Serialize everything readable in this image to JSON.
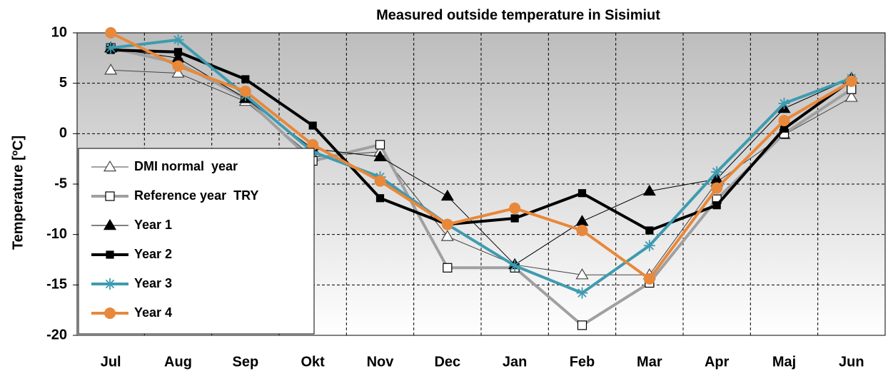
{
  "chart_data": {
    "type": "line",
    "title": "Measured outside temperature in Sisimiut",
    "y_label": "Temperature [ºC]",
    "categories": [
      "Jul",
      "Aug",
      "Sep",
      "Okt",
      "Nov",
      "Dec",
      "Jan",
      "Feb",
      "Mar",
      "Apr",
      "Maj",
      "Jun"
    ],
    "ylim": [
      -20,
      10
    ],
    "yticks": [
      -20,
      -15,
      -10,
      -5,
      0,
      5,
      10
    ],
    "grid": true,
    "legend": "lower-left",
    "series": [
      {
        "name": "DMI normal  year",
        "color": "#444444",
        "width": 1,
        "marker": "triangle-open",
        "values": [
          6.3,
          6.0,
          3.2,
          -2.3,
          -1.8,
          -10.2,
          -13.0,
          -14.0,
          -14.0,
          -4.8,
          -0.1,
          3.6
        ]
      },
      {
        "name": "Reference year  TRY",
        "color": "#a0a0a0",
        "width": 4,
        "marker": "square-open",
        "values": [
          8.5,
          7.0,
          3.5,
          -2.7,
          -1.1,
          -13.3,
          -13.3,
          -19.0,
          -14.8,
          -6.5,
          0.0,
          4.4
        ]
      },
      {
        "name": "Year 1",
        "color": "#000000",
        "width": 1,
        "marker": "triangle",
        "values": [
          8.5,
          7.5,
          3.5,
          -1.5,
          -2.3,
          -6.2,
          -13.0,
          -8.7,
          -5.7,
          -4.5,
          2.5,
          5.5
        ]
      },
      {
        "name": "Year 2",
        "color": "#000000",
        "width": 4,
        "marker": "square",
        "values": [
          8.3,
          8.1,
          5.4,
          0.8,
          -6.4,
          -9.0,
          -8.4,
          -5.9,
          -9.6,
          -7.1,
          0.5,
          5.3
        ]
      },
      {
        "name": "Year 3",
        "color": "#3e9bb0",
        "width": 4,
        "marker": "star",
        "values": [
          8.5,
          9.3,
          3.8,
          -1.8,
          -4.3,
          -9.0,
          -13.1,
          -15.8,
          -11.1,
          -3.8,
          3.0,
          5.5
        ]
      },
      {
        "name": "Year 4",
        "color": "#e8883a",
        "width": 4,
        "marker": "circle",
        "values": [
          10.0,
          6.7,
          4.2,
          -1.1,
          -4.7,
          -9.0,
          -7.4,
          -9.6,
          -14.4,
          -5.4,
          1.3,
          5.2
        ]
      }
    ]
  }
}
